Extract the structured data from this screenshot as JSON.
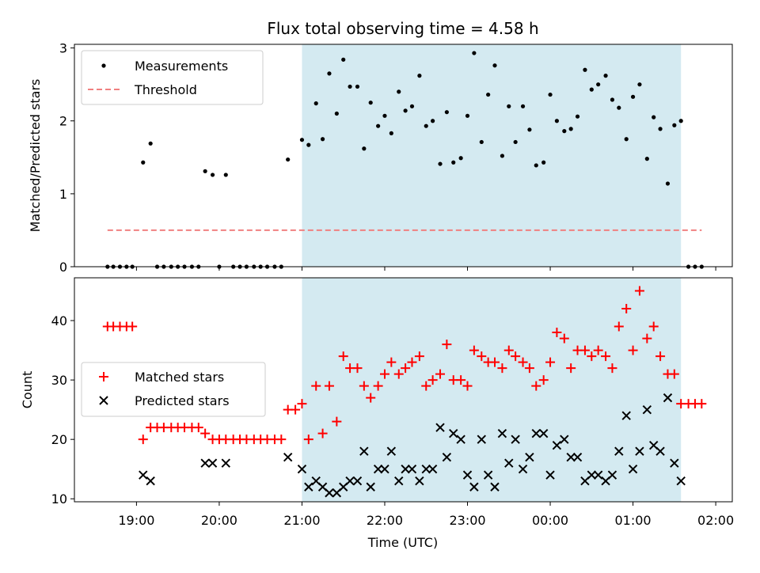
{
  "chart_data": [
    {
      "type": "scatter",
      "title": "Flux total observing time = 4.58 h",
      "ylabel": "Matched/Predicted stars",
      "xlabel": "",
      "xlim": [
        18.25,
        26.2
      ],
      "ylim": [
        0,
        3.05
      ],
      "yticks": [
        0,
        1,
        2,
        3
      ],
      "grid": false,
      "legend": "top-left",
      "highlight_span": [
        21.0,
        25.58
      ],
      "span_color": "#d4eaf1",
      "threshold": {
        "name": "Threshold",
        "value": 0.5,
        "x_range": [
          18.65,
          25.83
        ],
        "color": "#f08080"
      },
      "series": [
        {
          "name": "Measurements",
          "color": "#000000",
          "marker": "dot",
          "points": [
            [
              18.65,
              0
            ],
            [
              18.72,
              0
            ],
            [
              18.8,
              0
            ],
            [
              18.88,
              0
            ],
            [
              18.95,
              0
            ],
            [
              19.08,
              1.43
            ],
            [
              19.17,
              1.69
            ],
            [
              19.25,
              0
            ],
            [
              19.33,
              0
            ],
            [
              19.42,
              0
            ],
            [
              19.5,
              0
            ],
            [
              19.58,
              0
            ],
            [
              19.67,
              0
            ],
            [
              19.75,
              0
            ],
            [
              19.83,
              1.31
            ],
            [
              19.92,
              1.26
            ],
            [
              20.0,
              0
            ],
            [
              20.08,
              1.26
            ],
            [
              20.17,
              0
            ],
            [
              20.25,
              0
            ],
            [
              20.33,
              0
            ],
            [
              20.42,
              0
            ],
            [
              20.5,
              0
            ],
            [
              20.58,
              0
            ],
            [
              20.67,
              0
            ],
            [
              20.75,
              0
            ],
            [
              20.83,
              1.47
            ],
            [
              21.0,
              1.74
            ],
            [
              21.08,
              1.67
            ],
            [
              21.17,
              2.24
            ],
            [
              21.25,
              1.75
            ],
            [
              21.33,
              2.65
            ],
            [
              21.42,
              2.1
            ],
            [
              21.5,
              2.84
            ],
            [
              21.58,
              2.47
            ],
            [
              21.67,
              2.47
            ],
            [
              21.75,
              1.62
            ],
            [
              21.83,
              2.25
            ],
            [
              21.92,
              1.93
            ],
            [
              22.0,
              2.07
            ],
            [
              22.08,
              1.83
            ],
            [
              22.17,
              2.4
            ],
            [
              22.25,
              2.14
            ],
            [
              22.33,
              2.2
            ],
            [
              22.42,
              2.62
            ],
            [
              22.5,
              1.93
            ],
            [
              22.58,
              2.0
            ],
            [
              22.67,
              1.41
            ],
            [
              22.75,
              2.12
            ],
            [
              22.83,
              1.43
            ],
            [
              22.92,
              1.49
            ],
            [
              23.0,
              2.07
            ],
            [
              23.08,
              2.93
            ],
            [
              23.17,
              1.71
            ],
            [
              23.25,
              2.36
            ],
            [
              23.33,
              2.76
            ],
            [
              23.42,
              1.52
            ],
            [
              23.5,
              2.2
            ],
            [
              23.58,
              1.71
            ],
            [
              23.67,
              2.2
            ],
            [
              23.75,
              1.88
            ],
            [
              23.83,
              1.39
            ],
            [
              23.92,
              1.43
            ],
            [
              24.0,
              2.36
            ],
            [
              24.08,
              2.0
            ],
            [
              24.17,
              1.86
            ],
            [
              24.25,
              1.89
            ],
            [
              24.33,
              2.06
            ],
            [
              24.42,
              2.7
            ],
            [
              24.5,
              2.43
            ],
            [
              24.58,
              2.5
            ],
            [
              24.67,
              2.62
            ],
            [
              24.75,
              2.29
            ],
            [
              24.83,
              2.18
            ],
            [
              24.92,
              1.75
            ],
            [
              25.0,
              2.33
            ],
            [
              25.08,
              2.5
            ],
            [
              25.17,
              1.48
            ],
            [
              25.25,
              2.05
            ],
            [
              25.33,
              1.89
            ],
            [
              25.42,
              1.14
            ],
            [
              25.5,
              1.94
            ],
            [
              25.58,
              2.0
            ],
            [
              25.67,
              0
            ],
            [
              25.75,
              0
            ],
            [
              25.83,
              0
            ]
          ]
        }
      ]
    },
    {
      "type": "scatter",
      "title": "",
      "ylabel": "Count",
      "xlabel": "Time (UTC)",
      "xlim": [
        18.25,
        26.2
      ],
      "ylim": [
        9.5,
        47.2
      ],
      "yticks": [
        10,
        20,
        30,
        40
      ],
      "xticks": [
        19,
        20,
        21,
        22,
        23,
        24,
        25,
        26
      ],
      "xtick_labels": [
        "19:00",
        "20:00",
        "21:00",
        "22:00",
        "23:00",
        "00:00",
        "01:00",
        "02:00"
      ],
      "grid": false,
      "legend": "center-left",
      "highlight_span": [
        21.0,
        25.58
      ],
      "span_color": "#d4eaf1",
      "series": [
        {
          "name": "Matched stars",
          "color": "#ff0000",
          "marker": "plus",
          "points": [
            [
              18.65,
              39
            ],
            [
              18.72,
              39
            ],
            [
              18.8,
              39
            ],
            [
              18.88,
              39
            ],
            [
              18.95,
              39
            ],
            [
              19.08,
              20
            ],
            [
              19.17,
              22
            ],
            [
              19.25,
              22
            ],
            [
              19.33,
              22
            ],
            [
              19.42,
              22
            ],
            [
              19.5,
              22
            ],
            [
              19.58,
              22
            ],
            [
              19.67,
              22
            ],
            [
              19.75,
              22
            ],
            [
              19.83,
              21
            ],
            [
              19.92,
              20
            ],
            [
              20.0,
              20
            ],
            [
              20.08,
              20
            ],
            [
              20.17,
              20
            ],
            [
              20.25,
              20
            ],
            [
              20.33,
              20
            ],
            [
              20.42,
              20
            ],
            [
              20.5,
              20
            ],
            [
              20.58,
              20
            ],
            [
              20.67,
              20
            ],
            [
              20.75,
              20
            ],
            [
              20.83,
              25
            ],
            [
              20.92,
              25
            ],
            [
              21.0,
              26
            ],
            [
              21.08,
              20
            ],
            [
              21.17,
              29
            ],
            [
              21.25,
              21
            ],
            [
              21.33,
              29
            ],
            [
              21.42,
              23
            ],
            [
              21.5,
              34
            ],
            [
              21.58,
              32
            ],
            [
              21.67,
              32
            ],
            [
              21.75,
              29
            ],
            [
              21.83,
              27
            ],
            [
              21.92,
              29
            ],
            [
              22.0,
              31
            ],
            [
              22.08,
              33
            ],
            [
              22.17,
              31
            ],
            [
              22.25,
              32
            ],
            [
              22.33,
              33
            ],
            [
              22.42,
              34
            ],
            [
              22.5,
              29
            ],
            [
              22.58,
              30
            ],
            [
              22.67,
              31
            ],
            [
              22.75,
              36
            ],
            [
              22.83,
              30
            ],
            [
              22.92,
              30
            ],
            [
              23.0,
              29
            ],
            [
              23.08,
              35
            ],
            [
              23.17,
              34
            ],
            [
              23.25,
              33
            ],
            [
              23.33,
              33
            ],
            [
              23.42,
              32
            ],
            [
              23.5,
              35
            ],
            [
              23.58,
              34
            ],
            [
              23.67,
              33
            ],
            [
              23.75,
              32
            ],
            [
              23.83,
              29
            ],
            [
              23.92,
              30
            ],
            [
              24.0,
              33
            ],
            [
              24.08,
              38
            ],
            [
              24.17,
              37
            ],
            [
              24.25,
              32
            ],
            [
              24.33,
              35
            ],
            [
              24.42,
              35
            ],
            [
              24.5,
              34
            ],
            [
              24.58,
              35
            ],
            [
              24.67,
              34
            ],
            [
              24.75,
              32
            ],
            [
              24.83,
              39
            ],
            [
              24.92,
              42
            ],
            [
              25.0,
              35
            ],
            [
              25.08,
              45
            ],
            [
              25.17,
              37
            ],
            [
              25.25,
              39
            ],
            [
              25.33,
              34
            ],
            [
              25.42,
              31
            ],
            [
              25.5,
              31
            ],
            [
              25.58,
              26
            ],
            [
              25.67,
              26
            ],
            [
              25.75,
              26
            ],
            [
              25.83,
              26
            ]
          ]
        },
        {
          "name": "Predicted stars",
          "color": "#000000",
          "marker": "x",
          "points": [
            [
              19.08,
              14
            ],
            [
              19.17,
              13
            ],
            [
              19.83,
              16
            ],
            [
              19.92,
              16
            ],
            [
              20.08,
              16
            ],
            [
              20.83,
              17
            ],
            [
              21.0,
              15
            ],
            [
              21.08,
              12
            ],
            [
              21.17,
              13
            ],
            [
              21.25,
              12
            ],
            [
              21.33,
              11
            ],
            [
              21.42,
              11
            ],
            [
              21.5,
              12
            ],
            [
              21.58,
              13
            ],
            [
              21.67,
              13
            ],
            [
              21.75,
              18
            ],
            [
              21.83,
              12
            ],
            [
              21.92,
              15
            ],
            [
              22.0,
              15
            ],
            [
              22.08,
              18
            ],
            [
              22.17,
              13
            ],
            [
              22.25,
              15
            ],
            [
              22.33,
              15
            ],
            [
              22.42,
              13
            ],
            [
              22.5,
              15
            ],
            [
              22.58,
              15
            ],
            [
              22.67,
              22
            ],
            [
              22.75,
              17
            ],
            [
              22.83,
              21
            ],
            [
              22.92,
              20
            ],
            [
              23.0,
              14
            ],
            [
              23.08,
              12
            ],
            [
              23.17,
              20
            ],
            [
              23.25,
              14
            ],
            [
              23.33,
              12
            ],
            [
              23.42,
              21
            ],
            [
              23.5,
              16
            ],
            [
              23.58,
              20
            ],
            [
              23.67,
              15
            ],
            [
              23.75,
              17
            ],
            [
              23.83,
              21
            ],
            [
              23.92,
              21
            ],
            [
              24.0,
              14
            ],
            [
              24.08,
              19
            ],
            [
              24.17,
              20
            ],
            [
              24.25,
              17
            ],
            [
              24.33,
              17
            ],
            [
              24.42,
              13
            ],
            [
              24.5,
              14
            ],
            [
              24.58,
              14
            ],
            [
              24.67,
              13
            ],
            [
              24.75,
              14
            ],
            [
              24.83,
              18
            ],
            [
              24.92,
              24
            ],
            [
              25.0,
              15
            ],
            [
              25.08,
              18
            ],
            [
              25.17,
              25
            ],
            [
              25.25,
              19
            ],
            [
              25.33,
              18
            ],
            [
              25.42,
              27
            ],
            [
              25.5,
              16
            ],
            [
              25.58,
              13
            ]
          ]
        }
      ]
    }
  ]
}
